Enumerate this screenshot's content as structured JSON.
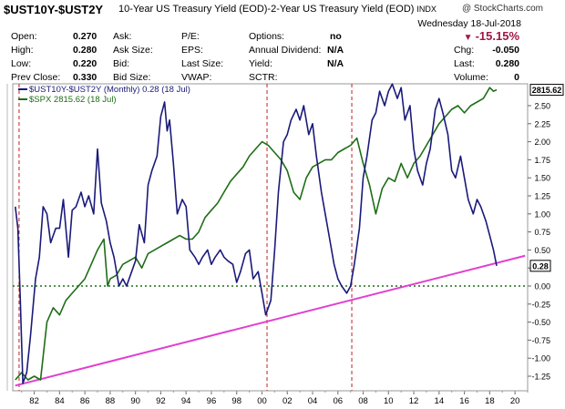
{
  "header": {
    "symbol": "$UST10Y-$UST2Y",
    "description": "10-Year US Treasury Yield (EOD)-2-Year US Treasury Yield (EOD)",
    "exchange": "INDX",
    "copyright": "@ StockCharts.com",
    "date": "Wednesday  18-Jul-2018",
    "change_percent": "-15.15%",
    "change_direction_icon": "down-triangle-icon",
    "accent_color": "#a01545"
  },
  "quote": {
    "open_label": "Open:",
    "open_value": "0.270",
    "high_label": "High:",
    "high_value": "0.280",
    "low_label": "Low:",
    "low_value": "0.220",
    "prevclose_label": "Prev Close:",
    "prevclose_value": "0.330",
    "ask_label": "Ask:",
    "asksize_label": "Ask Size:",
    "bid_label": "Bid:",
    "bidsize_label": "Bid Size:",
    "pe_label": "P/E:",
    "eps_label": "EPS:",
    "lastsize_label": "Last Size:",
    "vwap_label": "VWAP:",
    "options_label": "Options:",
    "options_value": "no",
    "dividend_label": "Annual Dividend:",
    "dividend_value": "N/A",
    "yield_label": "Yield:",
    "yield_value": "N/A",
    "sctr_label": "SCTR:",
    "chg_label": "Chg:",
    "chg_value": "-0.050",
    "last_label": "Last:",
    "last_value": "0.280",
    "volume_label": "Volume:",
    "volume_value": "0"
  },
  "legend": {
    "spread": "$UST10Y-$UST2Y (Monthly) 0.28 (18 Jul)",
    "spx": "$SPX 2815.62 (18 Jul)"
  },
  "chart_data": {
    "type": "line",
    "x_range": [
      1980.3,
      2021.0
    ],
    "ylim": [
      -1.4,
      2.8
    ],
    "y_ticks": [
      2.5,
      2.25,
      2.0,
      1.75,
      1.5,
      1.25,
      1.0,
      0.75,
      0.5,
      0.25,
      0.0,
      -0.25,
      -0.5,
      -0.75,
      -1.0,
      -1.25
    ],
    "y_tick_labels": [
      "2.50",
      "2.25",
      "2.00",
      "1.75",
      "1.50",
      "1.25",
      "1.00",
      "0.75",
      "0.50",
      "0.25",
      "0.00",
      "-0.25",
      "-0.50",
      "-0.75",
      "-1.00",
      "-1.25"
    ],
    "x_ticks": [
      1982,
      1984,
      1986,
      1988,
      1990,
      1992,
      1994,
      1996,
      1998,
      2000,
      2002,
      2004,
      2006,
      2008,
      2010,
      2012,
      2014,
      2016,
      2018,
      2020
    ],
    "x_tick_labels": [
      "82",
      "84",
      "86",
      "88",
      "90",
      "92",
      "94",
      "96",
      "98",
      "00",
      "02",
      "04",
      "06",
      "08",
      "10",
      "12",
      "14",
      "16",
      "18",
      "20"
    ],
    "last_value_label": "0.28",
    "spx_last_label": "2815.62",
    "grid": false,
    "series": [
      {
        "name": "$UST10Y-$UST2Y (Monthly) 0.28 (18 Jul)",
        "color": "#1a1a7a",
        "x": [
          1980.5,
          1980.7,
          1980.9,
          1981.1,
          1981.4,
          1981.7,
          1981.9,
          1982.1,
          1982.4,
          1982.7,
          1983.0,
          1983.3,
          1983.7,
          1984.0,
          1984.3,
          1984.7,
          1985.0,
          1985.3,
          1985.7,
          1986.0,
          1986.3,
          1986.7,
          1987.0,
          1987.3,
          1987.7,
          1988.0,
          1988.3,
          1988.7,
          1989.0,
          1989.3,
          1989.7,
          1990.0,
          1990.3,
          1990.7,
          1991.0,
          1991.3,
          1991.7,
          1992.0,
          1992.3,
          1992.5,
          1992.7,
          1993.0,
          1993.3,
          1993.7,
          1994.0,
          1994.3,
          1994.7,
          1995.0,
          1995.3,
          1995.7,
          1996.0,
          1996.3,
          1996.7,
          1997.0,
          1997.3,
          1997.7,
          1998.0,
          1998.3,
          1998.7,
          1999.0,
          1999.3,
          1999.7,
          2000.0,
          2000.3,
          2000.7,
          2001.0,
          2001.3,
          2001.7,
          2002.0,
          2002.3,
          2002.7,
          2003.0,
          2003.3,
          2003.7,
          2004.0,
          2004.3,
          2004.7,
          2005.0,
          2005.3,
          2005.7,
          2006.0,
          2006.3,
          2006.7,
          2007.0,
          2007.3,
          2007.7,
          2008.0,
          2008.3,
          2008.7,
          2009.0,
          2009.3,
          2009.7,
          2010.0,
          2010.3,
          2010.7,
          2011.0,
          2011.3,
          2011.7,
          2012.0,
          2012.3,
          2012.7,
          2013.0,
          2013.3,
          2013.7,
          2014.0,
          2014.3,
          2014.7,
          2015.0,
          2015.3,
          2015.7,
          2016.0,
          2016.3,
          2016.7,
          2017.0,
          2017.3,
          2017.7,
          2018.0,
          2018.3,
          2018.55
        ],
        "values": [
          1.1,
          0.8,
          -0.2,
          -1.35,
          -1.2,
          -0.7,
          -0.3,
          0.1,
          0.4,
          1.1,
          1.0,
          0.6,
          0.8,
          0.8,
          1.2,
          0.4,
          1.05,
          1.1,
          1.3,
          1.1,
          1.25,
          1.0,
          1.9,
          1.15,
          0.9,
          0.6,
          0.4,
          0.0,
          0.1,
          0.0,
          0.2,
          0.35,
          0.85,
          0.6,
          1.4,
          1.6,
          1.8,
          2.35,
          2.55,
          2.15,
          2.3,
          1.7,
          1.0,
          1.2,
          1.1,
          0.5,
          0.4,
          0.3,
          0.4,
          0.5,
          0.3,
          0.4,
          0.5,
          0.4,
          0.35,
          0.3,
          0.05,
          0.2,
          0.45,
          0.5,
          0.1,
          0.2,
          -0.1,
          -0.4,
          -0.2,
          0.5,
          1.3,
          2.0,
          2.1,
          2.3,
          2.45,
          2.3,
          2.5,
          2.1,
          2.25,
          1.8,
          1.3,
          1.0,
          0.7,
          0.3,
          0.1,
          0.0,
          -0.1,
          0.0,
          0.3,
          0.8,
          1.5,
          1.8,
          2.3,
          2.4,
          2.7,
          2.5,
          2.7,
          2.8,
          2.6,
          2.75,
          2.3,
          2.5,
          1.9,
          1.6,
          1.4,
          1.7,
          1.9,
          2.45,
          2.6,
          2.4,
          2.1,
          1.6,
          1.5,
          1.8,
          1.5,
          1.2,
          1.0,
          1.2,
          1.1,
          0.9,
          0.7,
          0.5,
          0.28
        ]
      },
      {
        "name": "$SPX 2815.62 (18 Jul)",
        "color": "#1e6e16",
        "x": [
          1980.5,
          1981.0,
          1981.5,
          1982.0,
          1982.5,
          1983.0,
          1983.5,
          1984.0,
          1984.5,
          1985.0,
          1985.5,
          1986.0,
          1986.5,
          1987.0,
          1987.5,
          1987.8,
          1988.0,
          1988.5,
          1989.0,
          1989.5,
          1990.0,
          1990.5,
          1991.0,
          1991.5,
          1992.0,
          1992.5,
          1993.0,
          1993.5,
          1994.0,
          1994.5,
          1995.0,
          1995.5,
          1996.0,
          1996.5,
          1997.0,
          1997.5,
          1998.0,
          1998.5,
          1999.0,
          1999.5,
          2000.0,
          2000.5,
          2001.0,
          2001.5,
          2002.0,
          2002.5,
          2003.0,
          2003.5,
          2004.0,
          2004.5,
          2005.0,
          2005.5,
          2006.0,
          2006.5,
          2007.0,
          2007.5,
          2008.0,
          2008.5,
          2009.0,
          2009.5,
          2010.0,
          2010.5,
          2011.0,
          2011.5,
          2012.0,
          2012.5,
          2013.0,
          2013.5,
          2014.0,
          2014.5,
          2015.0,
          2015.5,
          2016.0,
          2016.5,
          2017.0,
          2017.5,
          2018.0,
          2018.3,
          2018.55
        ],
        "values": [
          -1.3,
          -1.2,
          -1.3,
          -1.25,
          -1.3,
          -0.5,
          -0.3,
          -0.4,
          -0.2,
          -0.1,
          0.0,
          0.1,
          0.3,
          0.5,
          0.65,
          0.0,
          0.1,
          0.15,
          0.3,
          0.35,
          0.4,
          0.25,
          0.45,
          0.5,
          0.55,
          0.6,
          0.65,
          0.7,
          0.65,
          0.65,
          0.75,
          0.95,
          1.05,
          1.15,
          1.3,
          1.45,
          1.55,
          1.65,
          1.8,
          1.9,
          2.0,
          1.95,
          1.85,
          1.75,
          1.6,
          1.3,
          1.2,
          1.5,
          1.65,
          1.7,
          1.75,
          1.75,
          1.85,
          1.9,
          1.95,
          2.05,
          1.7,
          1.4,
          1.0,
          1.35,
          1.5,
          1.45,
          1.7,
          1.5,
          1.7,
          1.8,
          1.95,
          2.1,
          2.25,
          2.35,
          2.45,
          2.5,
          2.4,
          2.5,
          2.55,
          2.6,
          2.75,
          2.7,
          2.72
        ]
      }
    ],
    "zero_line": {
      "y": 0,
      "color": "#1e6e16"
    },
    "trendline": {
      "x": [
        1980.5,
        2020.8
      ],
      "y": [
        -1.38,
        0.42
      ],
      "color": "#e040d0"
    },
    "vertical_markers": {
      "x": [
        1980.8,
        2000.4,
        2007.1
      ],
      "color": "#c02020"
    }
  }
}
